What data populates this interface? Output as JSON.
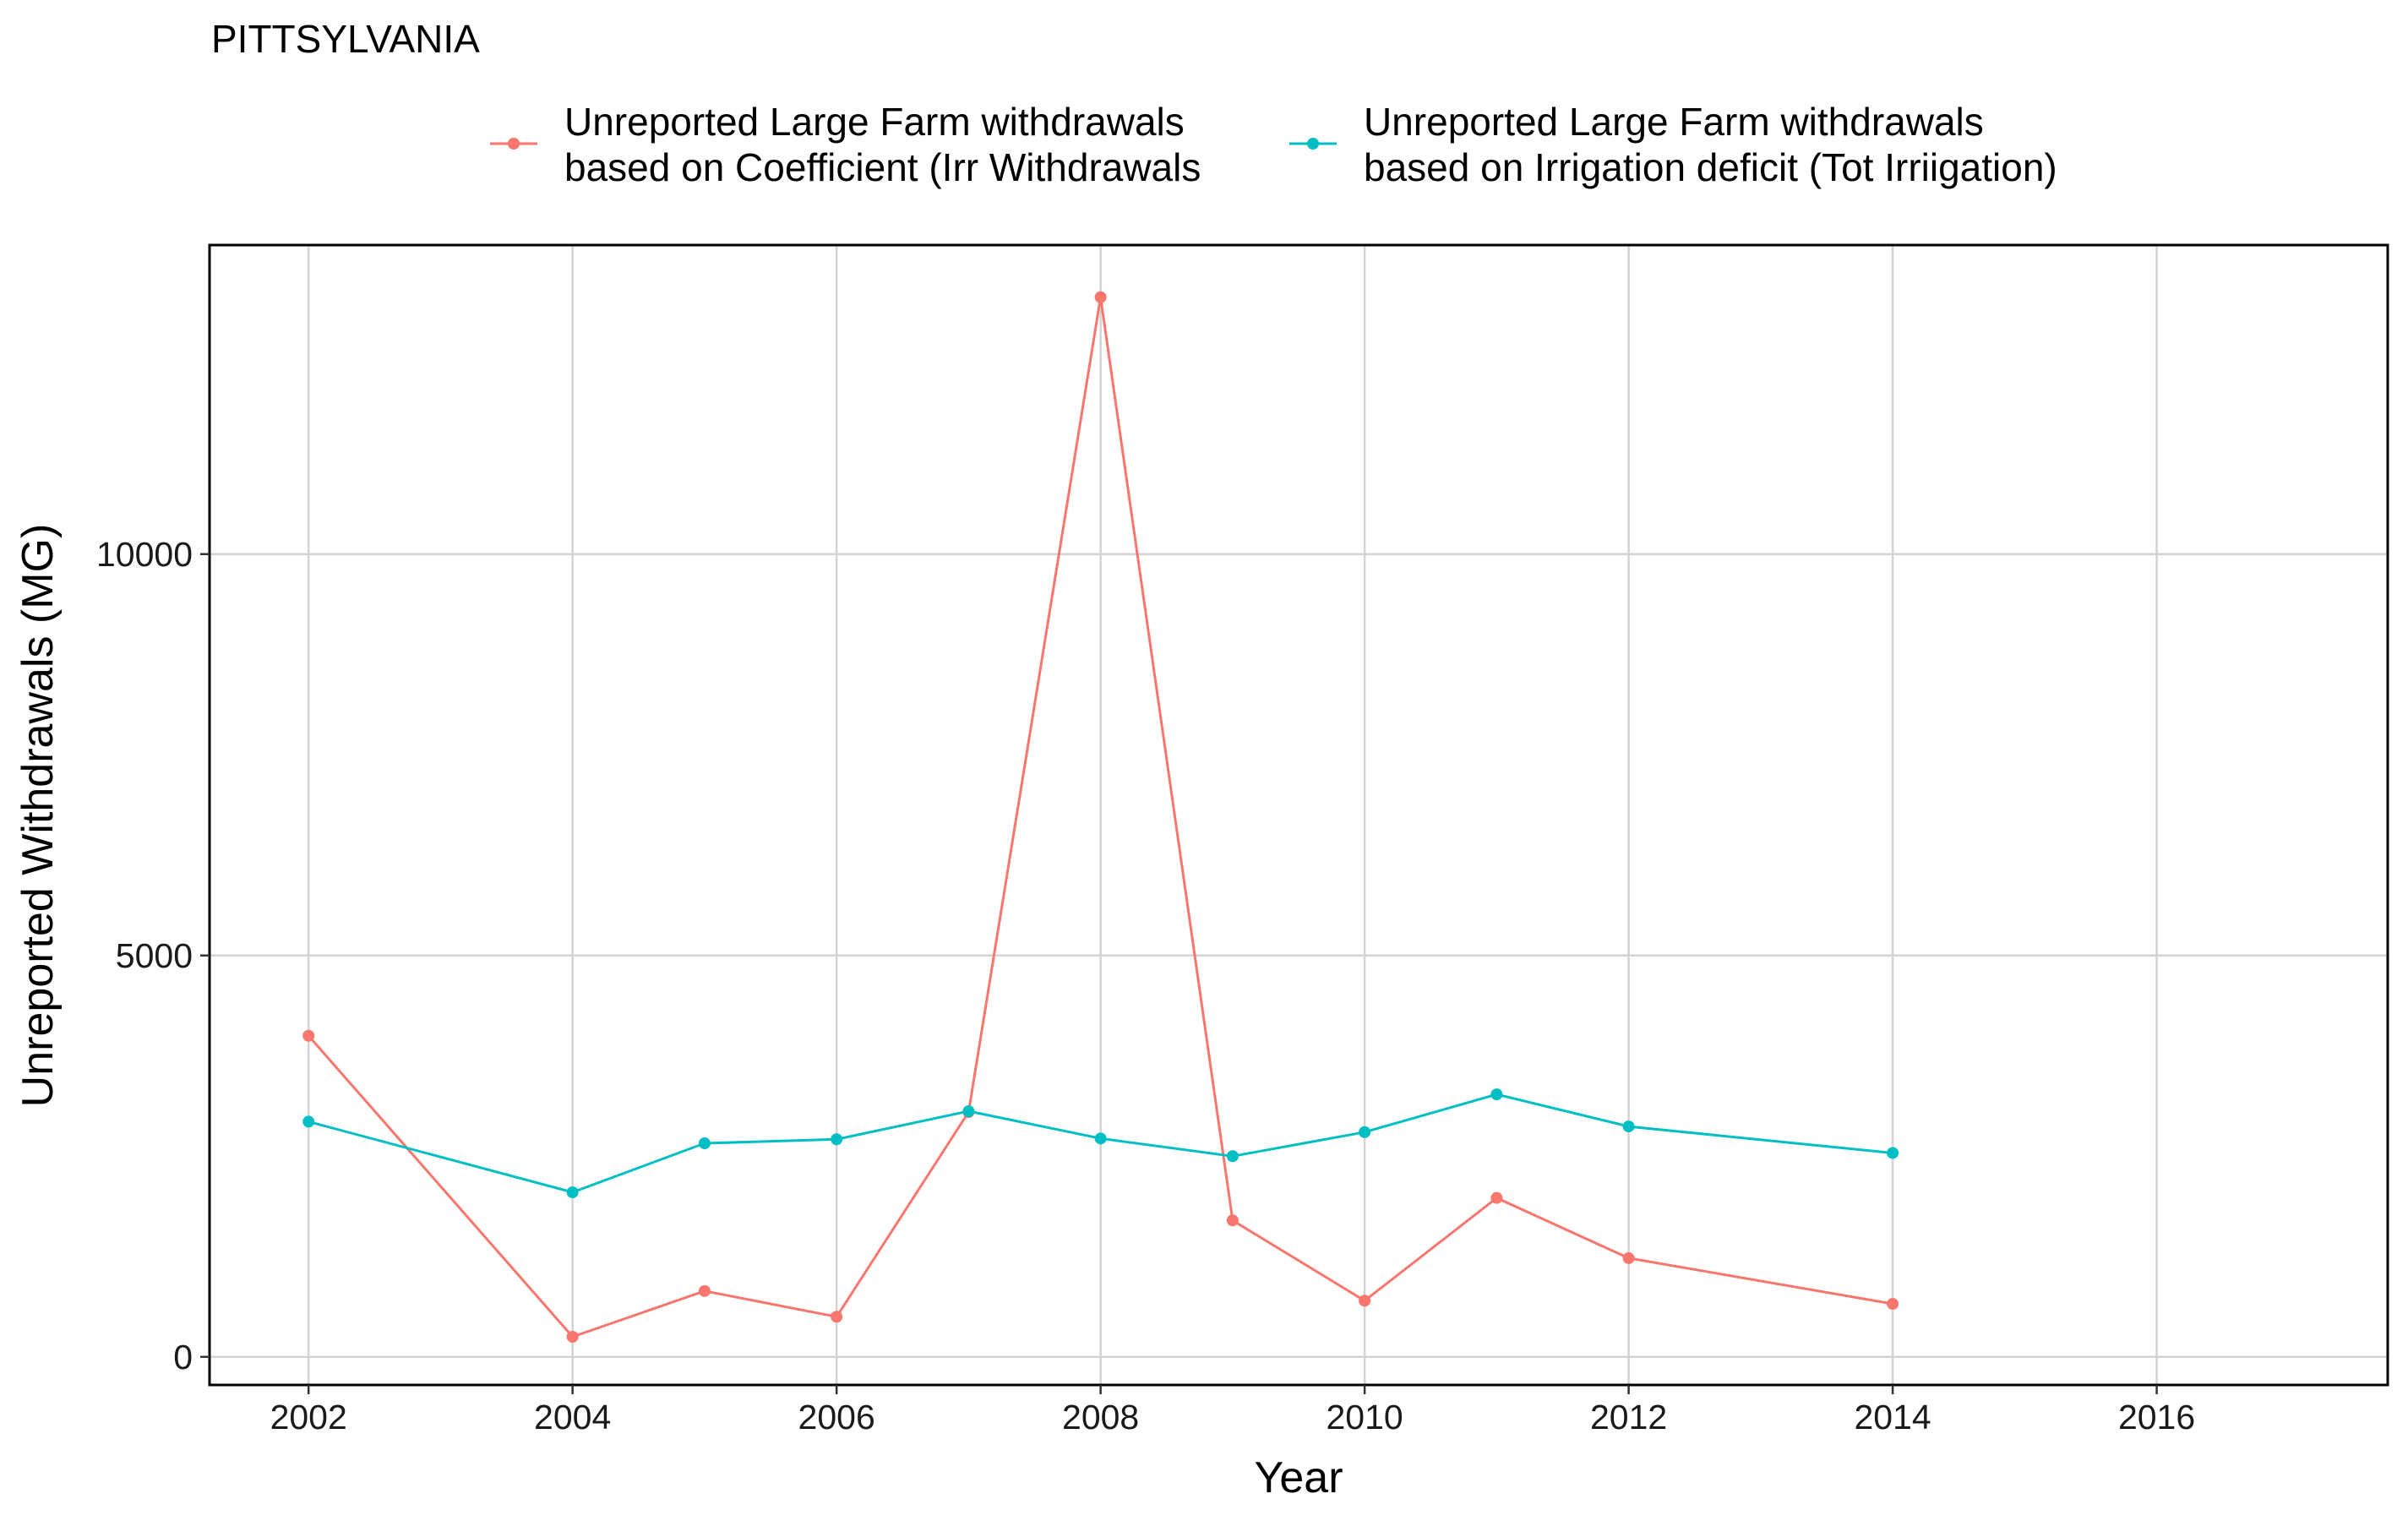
{
  "chart_data": {
    "type": "line",
    "title": "PITTSYLVANIA",
    "xlabel": "Year",
    "ylabel": "Unreported Withdrawals (MG)",
    "xlim": [
      2001.25,
      2017.75
    ],
    "ylim": [
      -350,
      13850
    ],
    "xticks": [
      2002,
      2004,
      2006,
      2008,
      2010,
      2012,
      2014,
      2016
    ],
    "yticks": [
      0,
      5000,
      10000
    ],
    "grid": true,
    "legend_position": "top",
    "series": [
      {
        "name_line1": "Unreported Large Farm withdrawals",
        "name_line2": "based on Coefficient (Irr Withdrawals",
        "color": "#F8766D",
        "x": [
          2002,
          2004,
          2005,
          2006,
          2007,
          2008,
          2009,
          2010,
          2011,
          2012,
          2014
        ],
        "y": [
          4000,
          250,
          820,
          500,
          3050,
          13200,
          1700,
          700,
          1980,
          1230,
          660
        ]
      },
      {
        "name_line1": "Unreported Large Farm withdrawals",
        "name_line2": "based on Irrigation deficit (Tot Irriigation)",
        "color": "#00BFC4",
        "x": [
          2002,
          2004,
          2005,
          2006,
          2007,
          2008,
          2009,
          2010,
          2011,
          2012,
          2014
        ],
        "y": [
          2930,
          2050,
          2660,
          2710,
          3060,
          2720,
          2500,
          2800,
          3270,
          2870,
          2540
        ]
      }
    ]
  }
}
